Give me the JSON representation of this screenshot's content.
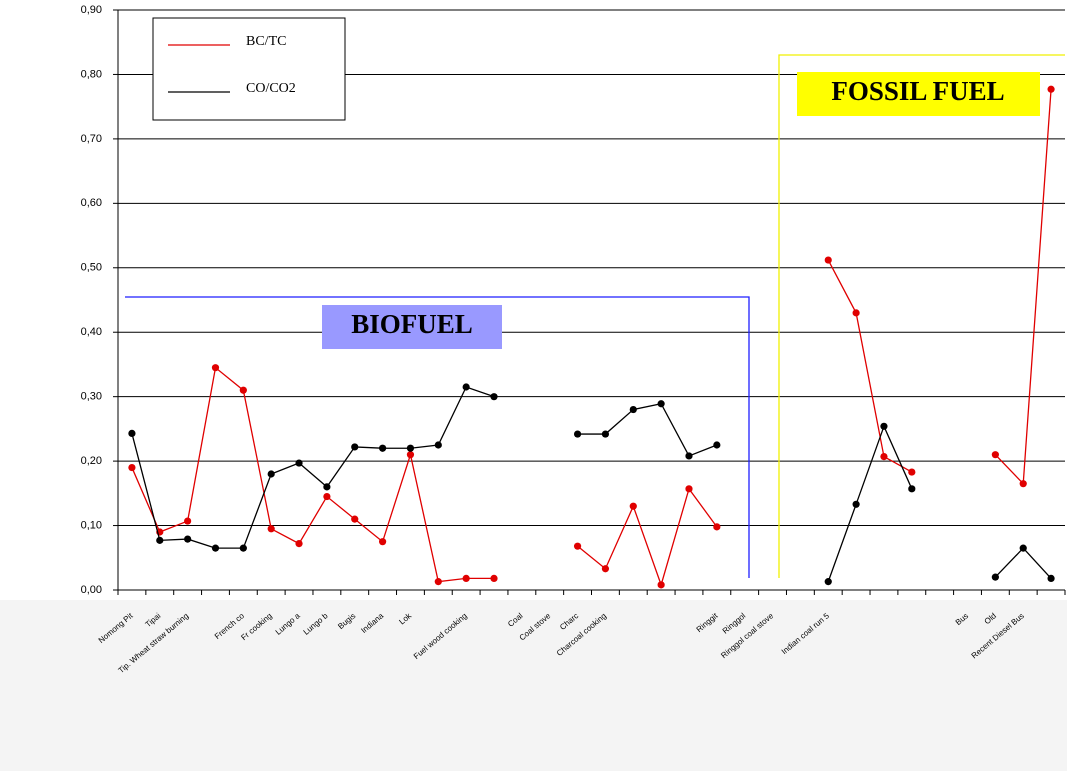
{
  "chart_data": {
    "type": "line",
    "categories": [
      "Nomong Pit",
      "Tipai",
      "Tip. Wheat straw burning",
      null,
      "French co",
      "Fr cooking",
      "Lungo a",
      "Lungo b",
      "Bugis",
      "Indiana",
      "Lok",
      null,
      "Fuel wood cooking",
      null,
      "Coal",
      "Coal stove",
      "Charc",
      "Charcoal cooking",
      null,
      null,
      null,
      "Ringgit",
      "Ringgol",
      "Ringgol coal stove",
      null,
      "Indian coal run 5",
      null,
      null,
      null,
      null,
      "Bus",
      "Old",
      "Recent Diesel Bus",
      null
    ],
    "series": [
      {
        "name": "BC/TC",
        "color": "#e00000",
        "values": [
          0.19,
          0.09,
          0.107,
          0.345,
          0.31,
          0.095,
          0.072,
          0.145,
          0.11,
          0.075,
          0.21,
          0.013,
          0.018,
          0.018,
          null,
          null,
          0.068,
          0.033,
          0.13,
          0.008,
          0.157,
          0.098,
          null,
          null,
          null,
          0.512,
          0.43,
          0.207,
          0.183,
          null,
          null,
          0.21,
          0.165,
          0.777
        ]
      },
      {
        "name": "CO/CO2",
        "color": "#000000",
        "values": [
          0.243,
          0.077,
          0.079,
          0.065,
          0.065,
          0.18,
          0.197,
          0.16,
          0.222,
          0.22,
          0.22,
          0.225,
          0.315,
          0.3,
          null,
          null,
          0.242,
          0.242,
          0.28,
          0.289,
          0.208,
          0.225,
          null,
          null,
          null,
          0.013,
          0.133,
          0.254,
          0.157,
          null,
          null,
          0.02,
          0.065,
          0.018
        ]
      }
    ],
    "ylim": [
      0,
      0.9
    ],
    "yticks": [
      {
        "value": 0,
        "label": "0,00"
      },
      {
        "value": 0.1,
        "label": "0,10"
      },
      {
        "value": 0.2,
        "label": "0,20"
      },
      {
        "value": 0.3,
        "label": "0,30"
      },
      {
        "value": 0.4,
        "label": "0,40"
      },
      {
        "value": 0.5,
        "label": "0,50"
      },
      {
        "value": 0.6,
        "label": "0,60"
      },
      {
        "value": 0.7,
        "label": "0,70"
      },
      {
        "value": 0.8,
        "label": "0,80"
      },
      {
        "value": 0.9,
        "label": "0,90"
      }
    ],
    "grid": true,
    "annotations": [
      "BIOFUEL",
      "FOSSIL FUEL"
    ]
  }
}
